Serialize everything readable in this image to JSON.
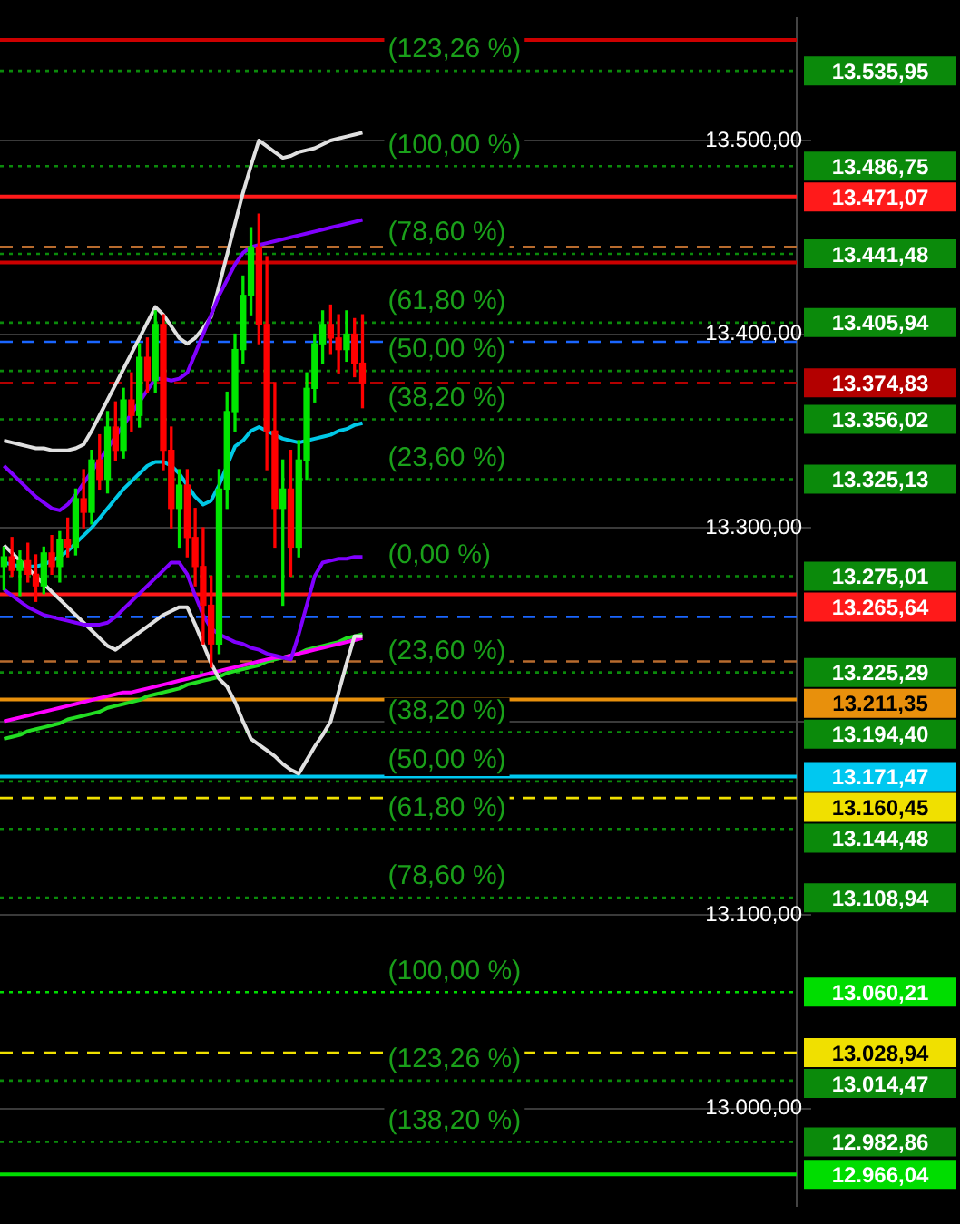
{
  "chart_data": {
    "type": "candlestick",
    "categories": [
      null,
      null,
      null,
      null,
      null,
      null,
      null,
      null,
      null,
      null,
      null,
      null,
      null,
      null,
      null,
      null,
      null,
      null,
      null,
      null,
      null,
      null,
      null,
      null,
      null,
      null,
      null,
      null,
      null,
      null,
      null,
      null,
      null,
      null,
      null,
      null,
      null,
      null,
      null,
      null,
      null,
      null,
      null,
      null,
      null,
      null,
      null,
      null,
      null,
      null,
      null,
      null,
      null,
      null,
      null,
      null,
      null,
      null,
      null,
      null,
      null,
      null,
      null,
      null,
      null,
      null,
      null,
      null,
      null,
      null,
      null,
      null,
      null,
      null,
      null,
      null,
      null,
      null,
      null,
      null,
      null,
      null,
      null,
      null,
      null,
      null,
      null,
      null,
      null,
      null,
      null,
      null,
      null,
      null,
      null,
      null,
      null,
      null,
      null,
      null
    ],
    "ohlc": [
      [
        13280,
        13290,
        13268,
        13285
      ],
      [
        13285,
        13295,
        13275,
        13278
      ],
      [
        13278,
        13288,
        13265,
        13283
      ],
      [
        13283,
        13292,
        13272,
        13276
      ],
      [
        13276,
        13286,
        13262,
        13270
      ],
      [
        13270,
        13290,
        13266,
        13287
      ],
      [
        13287,
        13296,
        13276,
        13280
      ],
      [
        13280,
        13298,
        13272,
        13294
      ],
      [
        13294,
        13305,
        13285,
        13290
      ],
      [
        13290,
        13320,
        13286,
        13315
      ],
      [
        13315,
        13330,
        13300,
        13308
      ],
      [
        13308,
        13340,
        13302,
        13335
      ],
      [
        13335,
        13348,
        13320,
        13325
      ],
      [
        13325,
        13360,
        13318,
        13352
      ],
      [
        13352,
        13365,
        13335,
        13340
      ],
      [
        13340,
        13372,
        13336,
        13366
      ],
      [
        13366,
        13380,
        13350,
        13358
      ],
      [
        13358,
        13395,
        13352,
        13388
      ],
      [
        13388,
        13398,
        13370,
        13376
      ],
      [
        13376,
        13412,
        13370,
        13405
      ],
      [
        13405,
        13410,
        13330,
        13340
      ],
      [
        13340,
        13352,
        13300,
        13310
      ],
      [
        13310,
        13330,
        13290,
        13322
      ],
      [
        13322,
        13330,
        13285,
        13295
      ],
      [
        13295,
        13310,
        13270,
        13280
      ],
      [
        13280,
        13300,
        13240,
        13260
      ],
      [
        13260,
        13275,
        13228,
        13240
      ],
      [
        13240,
        13330,
        13235,
        13320
      ],
      [
        13320,
        13370,
        13310,
        13360
      ],
      [
        13360,
        13400,
        13350,
        13392
      ],
      [
        13392,
        13430,
        13385,
        13420
      ],
      [
        13420,
        13455,
        13410,
        13445
      ],
      [
        13445,
        13462,
        13395,
        13405
      ],
      [
        13405,
        13440,
        13330,
        13350
      ],
      [
        13350,
        13375,
        13290,
        13310
      ],
      [
        13310,
        13335,
        13260,
        13320
      ],
      [
        13320,
        13340,
        13275,
        13290
      ],
      [
        13290,
        13345,
        13285,
        13335
      ],
      [
        13335,
        13380,
        13325,
        13372
      ],
      [
        13372,
        13400,
        13365,
        13395
      ],
      [
        13395,
        13412,
        13385,
        13405
      ],
      [
        13405,
        13415,
        13390,
        13398
      ],
      [
        13398,
        13410,
        13380,
        13392
      ],
      [
        13392,
        13412,
        13386,
        13400
      ],
      [
        13400,
        13408,
        13378,
        13385
      ],
      [
        13385,
        13410,
        13362,
        13374.83
      ],
      null,
      null,
      null,
      null,
      null,
      null,
      null,
      null,
      null,
      null,
      null,
      null,
      null,
      null,
      null,
      null,
      null,
      null,
      null,
      null,
      null,
      null,
      null,
      null,
      null,
      null,
      null,
      null,
      null,
      null,
      null,
      null,
      null,
      null,
      null,
      null,
      null,
      null,
      null,
      null,
      null,
      null,
      null,
      null,
      null,
      null,
      null,
      null,
      null,
      null,
      null,
      null,
      null,
      null
    ],
    "series": [
      {
        "type": "line",
        "color": "#8000ff",
        "values": [
          13332,
          13328,
          13324,
          13320,
          13316,
          13313,
          13310,
          13309,
          13312,
          13317,
          13323,
          13329,
          13335,
          13341,
          13347,
          13353,
          13359,
          13365,
          13371,
          13377,
          13377,
          13376,
          13377,
          13380,
          13390,
          13400,
          13410,
          13420,
          13428,
          13436,
          13442,
          13445,
          13446,
          13447,
          13448,
          13449,
          13450,
          13451,
          13452,
          13453,
          13454,
          13455,
          13456,
          13457,
          13458,
          13459,
          null,
          null,
          null,
          null,
          null,
          null,
          null,
          null,
          null,
          null,
          null,
          null,
          null,
          null,
          null,
          null,
          null,
          null,
          null,
          null,
          null,
          null,
          null,
          null,
          null,
          null,
          null,
          null,
          null,
          null,
          null,
          null,
          null,
          null,
          null,
          null,
          null,
          null,
          null,
          null,
          null,
          null,
          null,
          null,
          null,
          null,
          null,
          null,
          null,
          null,
          null,
          null,
          null,
          null
        ]
      },
      {
        "type": "line",
        "color": "#8000ff",
        "values": [
          13268,
          13265,
          13262,
          13259,
          13257,
          13255,
          13254,
          13253,
          13252,
          13251,
          13250,
          13250,
          13250,
          13251,
          13254,
          13258,
          13262,
          13266,
          13270,
          13274,
          13278,
          13282,
          13282,
          13276,
          13265,
          13255,
          13248,
          13245,
          13243,
          13241,
          13240,
          13238,
          13237,
          13235,
          13234,
          13233,
          13232,
          13245,
          13260,
          13275,
          13282,
          13283,
          13284,
          13284,
          13285,
          13285,
          null,
          null,
          null,
          null,
          null,
          null,
          null,
          null,
          null,
          null,
          null,
          null,
          null,
          null,
          null,
          null,
          null,
          null,
          null,
          null,
          null,
          null,
          null,
          null,
          null,
          null,
          null,
          null,
          null,
          null,
          null,
          null,
          null,
          null,
          null,
          null,
          null,
          null,
          null,
          null,
          null,
          null,
          null,
          null,
          null,
          null,
          null,
          null,
          null,
          null,
          null,
          null,
          null,
          null
        ]
      },
      {
        "type": "line",
        "color": "#e0e0e0",
        "values": [
          13345,
          13344,
          13343,
          13342,
          13341,
          13341,
          13340,
          13340,
          13340,
          13341,
          13343,
          13350,
          13358,
          13366,
          13374,
          13382,
          13390,
          13398,
          13406,
          13414,
          13410,
          13404,
          13398,
          13395,
          13398,
          13403,
          13409,
          13425,
          13441,
          13457,
          13473,
          13487,
          13500,
          13497,
          13494,
          13491,
          13492,
          13494,
          13495,
          13496,
          13498,
          13500,
          13501,
          13502,
          13503,
          13504,
          null,
          null,
          null,
          null,
          null,
          null,
          null,
          null,
          null,
          null,
          null,
          null,
          null,
          null,
          null,
          null,
          null,
          null,
          null,
          null,
          null,
          null,
          null,
          null,
          null,
          null,
          null,
          null,
          null,
          null,
          null,
          null,
          null,
          null,
          null,
          null,
          null,
          null,
          null,
          null,
          null,
          null,
          null,
          null,
          null,
          null,
          null,
          null,
          null,
          null,
          null,
          null,
          null,
          null
        ]
      },
      {
        "type": "line",
        "color": "#e0e0e0",
        "values": [
          13291,
          13287,
          13283,
          13279,
          13275,
          13271,
          13267,
          13263,
          13259,
          13255,
          13251,
          13247,
          13243,
          13239,
          13237,
          13240,
          13243,
          13246,
          13249,
          13252,
          13255,
          13257,
          13259,
          13259,
          13250,
          13240,
          13230,
          13222,
          13218,
          13210,
          13200,
          13191,
          13188,
          13185,
          13182,
          13178,
          13175,
          13173,
          13180,
          13187,
          13193,
          13200,
          13215,
          13230,
          13244,
          13244,
          null,
          null,
          null,
          null,
          null,
          null,
          null,
          null,
          null,
          null,
          null,
          null,
          null,
          null,
          null,
          null,
          null,
          null,
          null,
          null,
          null,
          null,
          null,
          null,
          null,
          null,
          null,
          null,
          null,
          null,
          null,
          null,
          null,
          null,
          null,
          null,
          null,
          null,
          null,
          null,
          null,
          null,
          null,
          null,
          null,
          null,
          null,
          null,
          null,
          null,
          null,
          null,
          null,
          null
        ]
      },
      {
        "type": "line",
        "color": "#00c8e6",
        "values": [
          13282,
          13281,
          13280,
          13280,
          13280,
          13281,
          13283,
          13285,
          13288,
          13292,
          13296,
          13300,
          13305,
          13310,
          13315,
          13320,
          13324,
          13328,
          13332,
          13334,
          13334,
          13332,
          13328,
          13322,
          13316,
          13312,
          13314,
          13322,
          13332,
          13342,
          13345,
          13350,
          13352,
          13350,
          13348,
          13346,
          13345,
          13344,
          13345,
          13346,
          13347,
          13348,
          13350,
          13351,
          13353,
          13354,
          null,
          null,
          null,
          null,
          null,
          null,
          null,
          null,
          null,
          null,
          null,
          null,
          null,
          null,
          null,
          null,
          null,
          null,
          null,
          null,
          null,
          null,
          null,
          null,
          null,
          null,
          null,
          null,
          null,
          null,
          null,
          null,
          null,
          null,
          null,
          null,
          null,
          null,
          null,
          null,
          null,
          null,
          null,
          null,
          null,
          null,
          null,
          null,
          null,
          null,
          null,
          null,
          null,
          null
        ]
      },
      {
        "type": "line",
        "color": "#ff00ff",
        "values": [
          13200,
          13201,
          13202,
          13203,
          13204,
          13205,
          13206,
          13207,
          13208,
          13209,
          13210,
          13211,
          13212,
          13213,
          13214,
          13215,
          13215,
          13216,
          13217,
          13218,
          13219,
          13220,
          13221,
          13222,
          13223,
          13224,
          13225,
          13226,
          13227,
          13228,
          13229,
          13230,
          13231,
          13232,
          13233,
          13233,
          13234,
          13235,
          13236,
          13237,
          13238,
          13239,
          13240,
          13241,
          13242,
          13243,
          null,
          null,
          null,
          null,
          null,
          null,
          null,
          null,
          null,
          null,
          null,
          null,
          null,
          null,
          null,
          null,
          null,
          null,
          null,
          null,
          null,
          null,
          null,
          null,
          null,
          null,
          null,
          null,
          null,
          null,
          null,
          null,
          null,
          null,
          null,
          null,
          null,
          null,
          null,
          null,
          null,
          null,
          null,
          null,
          null,
          null,
          null,
          null,
          null,
          null,
          null,
          null,
          null,
          null
        ]
      },
      {
        "type": "line",
        "color": "#22dd22",
        "values": [
          13191,
          13192,
          13193,
          13195,
          13196,
          13197,
          13198,
          13199,
          13201,
          13202,
          13203,
          13204,
          13205,
          13207,
          13208,
          13209,
          13210,
          13211,
          13213,
          13214,
          13215,
          13216,
          13217,
          13219,
          13220,
          13221,
          13222,
          13223,
          13225,
          13226,
          13227,
          13228,
          13229,
          13231,
          13232,
          13233,
          13234,
          13235,
          13237,
          13238,
          13239,
          13240,
          13241,
          13243,
          13244,
          13245,
          null,
          null,
          null,
          null,
          null,
          null,
          null,
          null,
          null,
          null,
          null,
          null,
          null,
          null,
          null,
          null,
          null,
          null,
          null,
          null,
          null,
          null,
          null,
          null,
          null,
          null,
          null,
          null,
          null,
          null,
          null,
          null,
          null,
          null,
          null,
          null,
          null,
          null,
          null,
          null,
          null,
          null,
          null,
          null,
          null,
          null,
          null,
          null,
          null,
          null,
          null,
          null,
          null,
          null
        ]
      }
    ],
    "ylim": [
      12950,
      13563
    ],
    "yticks": [
      {
        "value": 13000,
        "label": "13.000,00"
      },
      {
        "value": 13100,
        "label": "13.100,00"
      },
      {
        "value": 13200,
        "label": null
      },
      {
        "value": 13300,
        "label": "13.300,00"
      },
      {
        "value": 13400,
        "label": "13.400,00"
      },
      {
        "value": 13500,
        "label": "13.500,00"
      }
    ],
    "grid": "y",
    "ref_lines": [
      {
        "axis": "y",
        "value": 13552,
        "color": "#cc0000",
        "line_style": "solid"
      },
      {
        "axis": "y",
        "value": 13535.95,
        "label": "13.535,95",
        "color": "#0b8a0b",
        "line_style": "dotted"
      },
      {
        "axis": "y",
        "value": 13486.75,
        "label": "13.486,75",
        "color": "#0b8a0b",
        "line_style": "dotted"
      },
      {
        "axis": "y",
        "value": 13471.07,
        "label": "13.471,07",
        "color": "#ff1a1a",
        "line_style": "solid"
      },
      {
        "axis": "y",
        "value": 13445,
        "color": "#b86b2e",
        "line_style": "dashed"
      },
      {
        "axis": "y",
        "value": 13441.48,
        "label": "13.441,48",
        "color": "#0b8a0b",
        "line_style": "dotted"
      },
      {
        "axis": "y",
        "value": 13437,
        "color": "#cc0000",
        "line_style": "solid"
      },
      {
        "axis": "y",
        "value": 13405.94,
        "label": "13.405,94",
        "color": "#0b8a0b",
        "line_style": "dotted"
      },
      {
        "axis": "y",
        "value": 13396,
        "color": "#1a66ff",
        "line_style": "dashed"
      },
      {
        "axis": "y",
        "value": 13381,
        "color": "#0b8a0b",
        "line_style": "dotted"
      },
      {
        "axis": "y",
        "value": 13374.83,
        "label": "13.374,83",
        "color": "#b30000",
        "line_style": "dashed"
      },
      {
        "axis": "y",
        "value": 13356.02,
        "label": "13.356,02",
        "color": "#0b8a0b",
        "line_style": "dotted"
      },
      {
        "axis": "y",
        "value": 13325.13,
        "label": "13.325,13",
        "color": "#0b8a0b",
        "line_style": "dotted"
      },
      {
        "axis": "y",
        "value": 13275.01,
        "label": "13.275,01",
        "color": "#0b8a0b",
        "line_style": "dotted"
      },
      {
        "axis": "y",
        "value": 13265.64,
        "label": "13.265,64",
        "color": "#ff1a1a",
        "line_style": "solid"
      },
      {
        "axis": "y",
        "value": 13254,
        "color": "#1a66ff",
        "line_style": "dashed"
      },
      {
        "axis": "y",
        "value": 13231,
        "color": "#b86b2e",
        "line_style": "dashed"
      },
      {
        "axis": "y",
        "value": 13225.29,
        "label": "13.225,29",
        "color": "#0b8a0b",
        "line_style": "dotted"
      },
      {
        "axis": "y",
        "value": 13211.35,
        "label": "13.211,35",
        "color": "#e8900c",
        "line_style": "solid"
      },
      {
        "axis": "y",
        "value": 13194.4,
        "label": "13.194,40",
        "color": "#0b8a0b",
        "line_style": "dotted"
      },
      {
        "axis": "y",
        "value": 13171.47,
        "label": "13.171,47",
        "color": "#00c8f0",
        "line_style": "solid"
      },
      {
        "axis": "y",
        "value": 13169,
        "color": "#0b8a0b",
        "line_style": "dotted"
      },
      {
        "axis": "y",
        "value": 13160.45,
        "label": "13.160,45",
        "color": "#f0e000",
        "line_style": "dashed"
      },
      {
        "axis": "y",
        "value": 13144.48,
        "label": "13.144,48",
        "color": "#0b8a0b",
        "line_style": "dotted"
      },
      {
        "axis": "y",
        "value": 13108.94,
        "label": "13.108,94",
        "color": "#0b8a0b",
        "line_style": "dotted"
      },
      {
        "axis": "y",
        "value": 13060.21,
        "label": "13.060,21",
        "color": "#00dd00",
        "line_style": "dotted"
      },
      {
        "axis": "y",
        "value": 13028.94,
        "label": "13.028,94",
        "color": "#f0e000",
        "line_style": "dashed"
      },
      {
        "axis": "y",
        "value": 13014.47,
        "label": "13.014,47",
        "color": "#0b8a0b",
        "line_style": "dotted"
      },
      {
        "axis": "y",
        "value": 12982.86,
        "label": "12.982,86",
        "color": "#0b8a0b",
        "line_style": "dotted"
      },
      {
        "axis": "y",
        "value": 12966.04,
        "label": "12.966,04",
        "color": "#00dd00",
        "line_style": "solid"
      }
    ],
    "annotations": [
      "(123,26 %)",
      "(100,00 %)",
      "(78,60 %)",
      "(61,80 %)",
      "(50,00 %)",
      "(38,20 %)",
      "(23,60 %)",
      "(0,00 %)",
      "(23,60 %)",
      "(38,20 %)",
      "(50,00 %)",
      "(61,80 %)",
      "(78,60 %)",
      "(100,00 %)",
      "(123,26 %)",
      "(138,20 %)"
    ]
  }
}
